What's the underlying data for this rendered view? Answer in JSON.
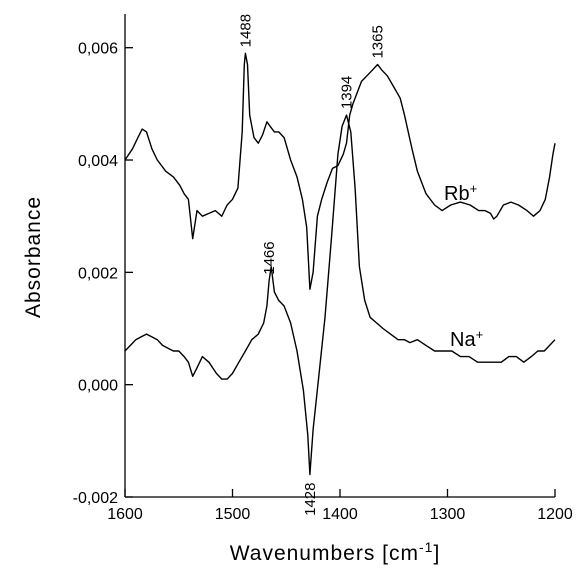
{
  "chart_data": {
    "type": "line",
    "xlabel": "Wavenumbers [cm",
    "xlabel_sup": "-1",
    "xlabel_end": "]",
    "ylabel": "Absorbance",
    "xlim": [
      1600,
      1200
    ],
    "ylim": [
      -0.002,
      0.0066
    ],
    "x_ticks": [
      1600,
      1500,
      1400,
      1300,
      1200
    ],
    "x_tick_labels": [
      "1600",
      "1500",
      "1400",
      "1300",
      "1200"
    ],
    "y_ticks": [
      -0.002,
      0.0,
      0.002,
      0.004,
      0.006
    ],
    "y_tick_labels": [
      "-0,002",
      "0,000",
      "0,002",
      "0,004",
      "0,006"
    ],
    "grid": false,
    "series": [
      {
        "name": "Rb",
        "name_sup": "+",
        "x": [
          1600,
          1593,
          1588,
          1584,
          1580,
          1575,
          1570,
          1562,
          1555,
          1549,
          1545,
          1541,
          1537,
          1533,
          1528,
          1522,
          1516,
          1510,
          1505,
          1500,
          1495,
          1491,
          1489,
          1488,
          1486,
          1484,
          1480,
          1476,
          1472,
          1468,
          1465,
          1461,
          1457,
          1452,
          1446,
          1440,
          1435,
          1431,
          1428,
          1425,
          1421,
          1417,
          1412,
          1407,
          1402,
          1397,
          1394,
          1391,
          1388,
          1384,
          1380,
          1375,
          1370,
          1365,
          1361,
          1356,
          1350,
          1344,
          1340,
          1333,
          1328,
          1320,
          1312,
          1305,
          1297,
          1288,
          1279,
          1271,
          1265,
          1260,
          1257,
          1254,
          1248,
          1241,
          1234,
          1226,
          1220,
          1214,
          1209,
          1205,
          1202,
          1200
        ],
        "values": [
          0.004,
          0.0042,
          0.0044,
          0.00455,
          0.0045,
          0.0042,
          0.004,
          0.0038,
          0.0037,
          0.00355,
          0.0034,
          0.0033,
          0.0026,
          0.0031,
          0.003,
          0.00305,
          0.0031,
          0.003,
          0.0032,
          0.0033,
          0.0035,
          0.0045,
          0.0057,
          0.0059,
          0.0057,
          0.0048,
          0.0044,
          0.0043,
          0.00445,
          0.00468,
          0.0046,
          0.0045,
          0.0045,
          0.0044,
          0.004,
          0.0037,
          0.0033,
          0.0028,
          0.0017,
          0.002,
          0.003,
          0.0033,
          0.0036,
          0.00385,
          0.0039,
          0.0041,
          0.0043,
          0.0048,
          0.005,
          0.0052,
          0.0054,
          0.0055,
          0.0056,
          0.0057,
          0.0056,
          0.0055,
          0.0053,
          0.0051,
          0.0048,
          0.0042,
          0.0038,
          0.0034,
          0.0032,
          0.0031,
          0.0032,
          0.00325,
          0.0032,
          0.0031,
          0.0031,
          0.00305,
          0.00295,
          0.003,
          0.0032,
          0.00325,
          0.0032,
          0.0031,
          0.003,
          0.0031,
          0.0033,
          0.0037,
          0.0041,
          0.0043
        ]
      },
      {
        "name": "Na",
        "name_sup": "+",
        "x": [
          1600,
          1595,
          1590,
          1585,
          1580,
          1575,
          1570,
          1565,
          1560,
          1555,
          1550,
          1545,
          1541,
          1537,
          1533,
          1528,
          1522,
          1515,
          1510,
          1505,
          1500,
          1494,
          1488,
          1482,
          1476,
          1471,
          1468,
          1466,
          1464,
          1461,
          1457,
          1452,
          1446,
          1440,
          1434,
          1430,
          1428,
          1425,
          1420,
          1414,
          1408,
          1402,
          1398,
          1394,
          1390,
          1386,
          1382,
          1377,
          1372,
          1366,
          1360,
          1353,
          1346,
          1340,
          1335,
          1328,
          1320,
          1312,
          1304,
          1296,
          1288,
          1280,
          1272,
          1265,
          1258,
          1250,
          1243,
          1236,
          1229,
          1222,
          1216,
          1210,
          1205,
          1200
        ],
        "values": [
          0.0006,
          0.0007,
          0.0008,
          0.00085,
          0.0009,
          0.00085,
          0.0008,
          0.0007,
          0.00065,
          0.0006,
          0.0006,
          0.0005,
          0.0004,
          0.00015,
          0.0003,
          0.0005,
          0.0004,
          0.0002,
          0.0001,
          0.0001,
          0.0002,
          0.0004,
          0.0006,
          0.0008,
          0.0009,
          0.0011,
          0.0014,
          0.00185,
          0.0021,
          0.00165,
          0.0015,
          0.0014,
          0.0011,
          0.0006,
          -0.0001,
          -0.0009,
          -0.0016,
          -0.0008,
          0.0001,
          0.0012,
          0.0026,
          0.0041,
          0.0046,
          0.0048,
          0.0045,
          0.0035,
          0.0021,
          0.0015,
          0.0012,
          0.0011,
          0.001,
          0.0009,
          0.0008,
          0.0008,
          0.00075,
          0.0008,
          0.0007,
          0.0006,
          0.0006,
          0.0006,
          0.0005,
          0.0005,
          0.0004,
          0.0004,
          0.0004,
          0.0004,
          0.0005,
          0.0005,
          0.0004,
          0.0005,
          0.0006,
          0.0006,
          0.0007,
          0.0008
        ]
      }
    ],
    "annotations": [
      {
        "text": "1488",
        "x": 1488,
        "y": 0.0059,
        "placement": "above"
      },
      {
        "text": "1394",
        "x": 1394,
        "y": 0.0048,
        "placement": "above"
      },
      {
        "text": "1365",
        "x": 1365,
        "y": 0.0057,
        "placement": "above"
      },
      {
        "text": "1466",
        "x": 1466,
        "y": 0.00185,
        "placement": "above"
      },
      {
        "text": "1428",
        "x": 1428,
        "y": -0.0016,
        "placement": "below"
      }
    ]
  }
}
